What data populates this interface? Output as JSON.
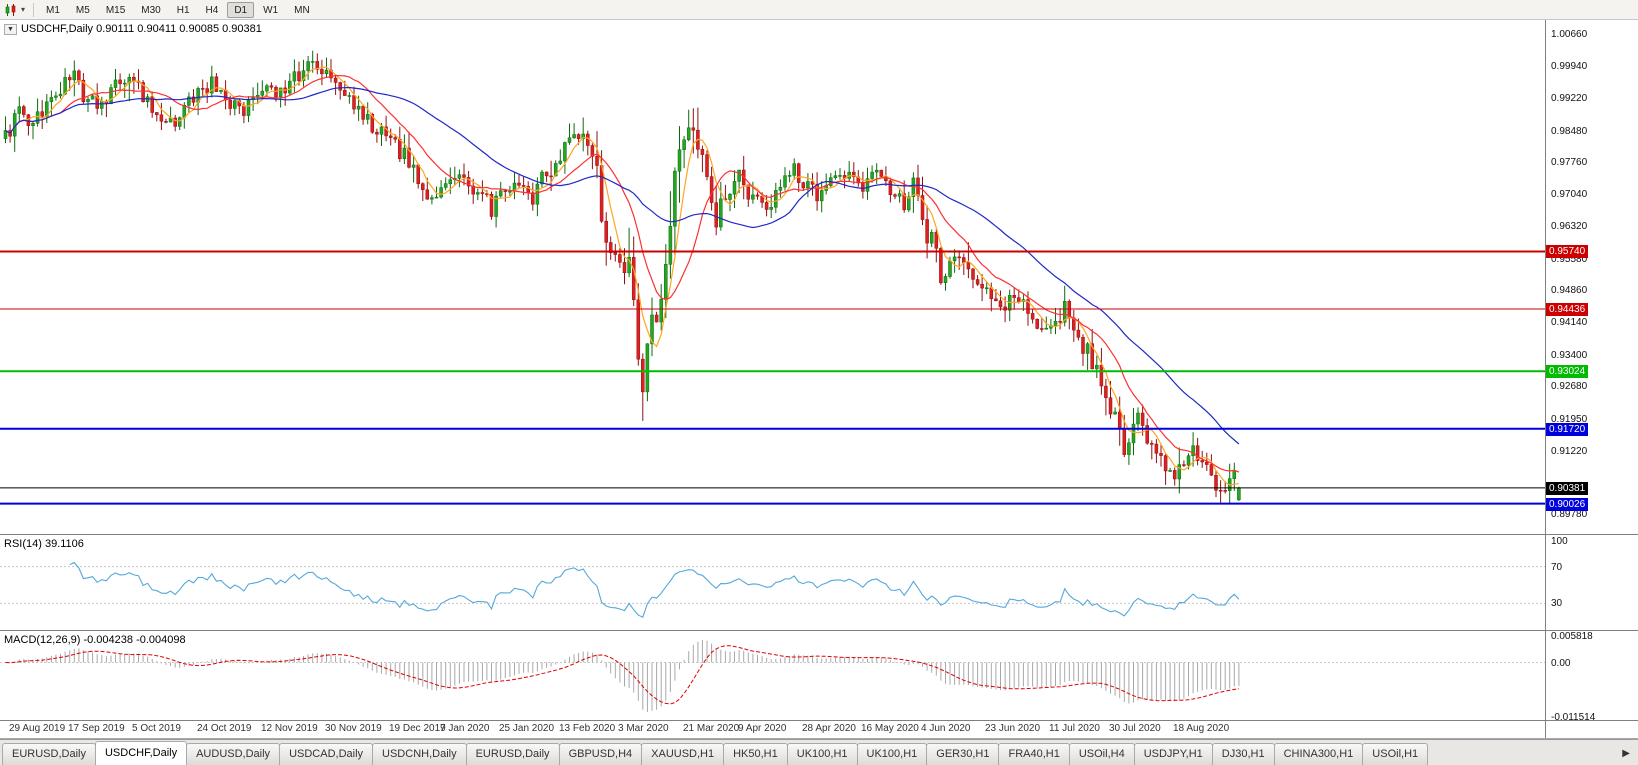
{
  "toolbar": {
    "timeframes": [
      "M1",
      "M5",
      "M15",
      "M30",
      "H1",
      "H4",
      "D1",
      "W1",
      "MN"
    ],
    "active": "D1",
    "dropdown_glyph": "▾"
  },
  "chart": {
    "title": "USDCHF,Daily 0.90111 0.90411 0.90085 0.90381",
    "symbol": "USDCHF",
    "period": "Daily",
    "collapse_glyph": "▼",
    "ohlc_display": {
      "open": "0.90111",
      "high": "0.90411",
      "low": "0.90085",
      "close": "0.90381"
    },
    "axis_labels": [
      "1.00660",
      "0.99940",
      "0.99220",
      "0.98480",
      "0.97760",
      "0.97040",
      "0.96320",
      "0.95580",
      "0.94860",
      "0.94140",
      "0.93400",
      "0.92680",
      "0.91950",
      "0.91220",
      "0.89780"
    ]
  },
  "chart_data": {
    "type": "candlestick",
    "symbol": "USDCHF",
    "timeframe": "Daily",
    "num_candles": 270,
    "price_axis": {
      "min": 0.8945,
      "max": 1.0085
    },
    "colors": {
      "up": "#23a623",
      "up_border": "#0c6b0c",
      "down": "#e02020",
      "down_border": "#8f0f0f"
    },
    "price_keypoints": [
      [
        0,
        0.983
      ],
      [
        3,
        0.9895
      ],
      [
        6,
        0.9868
      ],
      [
        10,
        0.9915
      ],
      [
        13,
        0.9958
      ],
      [
        15,
        0.9968
      ],
      [
        17,
        0.993
      ],
      [
        20,
        0.9902
      ],
      [
        23,
        0.9935
      ],
      [
        26,
        0.9968
      ],
      [
        27,
        0.9988
      ],
      [
        28,
        0.996
      ],
      [
        31,
        0.9915
      ],
      [
        34,
        0.988
      ],
      [
        36,
        0.9862
      ],
      [
        39,
        0.99
      ],
      [
        42,
        0.9928
      ],
      [
        45,
        0.9958
      ],
      [
        47,
        0.994
      ],
      [
        49,
        0.9912
      ],
      [
        52,
        0.99
      ],
      [
        56,
        0.9945
      ],
      [
        59,
        0.993
      ],
      [
        62,
        0.9958
      ],
      [
        65,
        0.9985
      ],
      [
        68,
        1.0005
      ],
      [
        70,
        0.9982
      ],
      [
        73,
        0.993
      ],
      [
        76,
        0.9898
      ],
      [
        80,
        0.9862
      ],
      [
        84,
        0.9828
      ],
      [
        88,
        0.9775
      ],
      [
        91,
        0.9718
      ],
      [
        93,
        0.9688
      ],
      [
        95,
        0.9705
      ],
      [
        98,
        0.9748
      ],
      [
        101,
        0.9722
      ],
      [
        104,
        0.97
      ],
      [
        106,
        0.9668
      ],
      [
        109,
        0.9705
      ],
      [
        112,
        0.9718
      ],
      [
        115,
        0.97
      ],
      [
        118,
        0.9752
      ],
      [
        121,
        0.98
      ],
      [
        124,
        0.984
      ],
      [
        126,
        0.982
      ],
      [
        128,
        0.9775
      ],
      [
        130,
        0.968
      ],
      [
        132,
        0.9572
      ],
      [
        134,
        0.9575
      ],
      [
        136,
        0.952
      ],
      [
        138,
        0.9352
      ],
      [
        139,
        0.931
      ],
      [
        140,
        0.9385
      ],
      [
        142,
        0.9448
      ],
      [
        144,
        0.9525
      ],
      [
        146,
        0.97
      ],
      [
        148,
        0.9855
      ],
      [
        149,
        0.988
      ],
      [
        151,
        0.98
      ],
      [
        153,
        0.9718
      ],
      [
        155,
        0.9655
      ],
      [
        157,
        0.9698
      ],
      [
        160,
        0.9745
      ],
      [
        163,
        0.9692
      ],
      [
        166,
        0.9652
      ],
      [
        169,
        0.971
      ],
      [
        172,
        0.9758
      ],
      [
        174,
        0.974
      ],
      [
        177,
        0.9695
      ],
      [
        180,
        0.9725
      ],
      [
        183,
        0.9755
      ],
      [
        186,
        0.9712
      ],
      [
        190,
        0.9748
      ],
      [
        193,
        0.971
      ],
      [
        196,
        0.9685
      ],
      [
        198,
        0.9715
      ],
      [
        200,
        0.966
      ],
      [
        202,
        0.9588
      ],
      [
        204,
        0.9512
      ],
      [
        206,
        0.9538
      ],
      [
        209,
        0.9572
      ],
      [
        211,
        0.951
      ],
      [
        214,
        0.9472
      ],
      [
        217,
        0.9438
      ],
      [
        220,
        0.9475
      ],
      [
        223,
        0.9442
      ],
      [
        226,
        0.9398
      ],
      [
        228,
        0.9412
      ],
      [
        231,
        0.9445
      ],
      [
        234,
        0.938
      ],
      [
        237,
        0.9322
      ],
      [
        240,
        0.925
      ],
      [
        242,
        0.9182
      ],
      [
        244,
        0.9128
      ],
      [
        246,
        0.9158
      ],
      [
        247,
        0.9185
      ],
      [
        249,
        0.9138
      ],
      [
        251,
        0.9105
      ],
      [
        253,
        0.9078
      ],
      [
        255,
        0.9045
      ],
      [
        257,
        0.9088
      ],
      [
        259,
        0.9125
      ],
      [
        261,
        0.9098
      ],
      [
        263,
        0.9062
      ],
      [
        265,
        0.9032
      ],
      [
        267,
        0.9072
      ],
      [
        269,
        0.90381
      ]
    ],
    "forced_extremes": [
      {
        "idx": 68,
        "high": 1.0023
      },
      {
        "idx": 139,
        "low": 0.919
      }
    ],
    "last_candle": {
      "o": 0.90111,
      "h": 0.90411,
      "l": 0.90085,
      "c": 0.90381
    },
    "moving_averages": [
      {
        "period": 5,
        "color": "#ffa520"
      },
      {
        "period": 13,
        "color": "#ff3030"
      },
      {
        "period": 34,
        "color": "#1f28c8"
      }
    ],
    "horizontal_lines": [
      {
        "value": 0.9574,
        "label": "0.95740",
        "color": "#cc0000",
        "width": 2
      },
      {
        "value": 0.94436,
        "label": "0.94436",
        "color": "#cc0000",
        "width": 1
      },
      {
        "value": 0.93024,
        "label": "0.93024",
        "color": "#00bb00",
        "width": 2
      },
      {
        "value": 0.9172,
        "label": "0.91720",
        "color": "#0000dd",
        "width": 2
      },
      {
        "value": 0.90026,
        "label": "0.90026",
        "color": "#0000dd",
        "width": 2
      }
    ],
    "current_price": {
      "value": 0.90381,
      "label": "0.90381",
      "color": "#000000"
    },
    "date_labels": [
      {
        "idx": 1,
        "label": "29 Aug 2019"
      },
      {
        "idx": 14,
        "label": "17 Sep 2019"
      },
      {
        "idx": 28,
        "label": "5 Oct 2019"
      },
      {
        "idx": 42,
        "label": "24 Oct 2019"
      },
      {
        "idx": 56,
        "label": "12 Nov 2019"
      },
      {
        "idx": 70,
        "label": "30 Nov 2019"
      },
      {
        "idx": 84,
        "label": "19 Dec 2019"
      },
      {
        "idx": 95,
        "label": "7 Jan 2020"
      },
      {
        "idx": 108,
        "label": "25 Jan 2020"
      },
      {
        "idx": 121,
        "label": "13 Feb 2020"
      },
      {
        "idx": 134,
        "label": "3 Mar 2020"
      },
      {
        "idx": 148,
        "label": "21 Mar 2020"
      },
      {
        "idx": 160,
        "label": "9 Apr 2020"
      },
      {
        "idx": 174,
        "label": "28 Apr 2020"
      },
      {
        "idx": 187,
        "label": "16 May 2020"
      },
      {
        "idx": 200,
        "label": "4 Jun 2020"
      },
      {
        "idx": 214,
        "label": "23 Jun 2020"
      },
      {
        "idx": 228,
        "label": "11 Jul 2020"
      },
      {
        "idx": 241,
        "label": "30 Jul 2020"
      },
      {
        "idx": 255,
        "label": "18 Aug 2020"
      }
    ]
  },
  "rsi": {
    "label": "RSI(14) 39.1106",
    "name": "RSI(14)",
    "value": "39.1106",
    "levels": [
      70,
      30
    ],
    "axis_labels": [
      "100",
      "70",
      "30"
    ],
    "color": "#53a8dc"
  },
  "macd": {
    "label": "MACD(12,26,9) -0.004238 -0.004098",
    "name": "MACD(12,26,9)",
    "values": [
      "-0.004238",
      "-0.004098"
    ],
    "axis_labels": [
      "0.005818",
      "0.00",
      "-0.011514"
    ],
    "range": {
      "max": 0.005818,
      "min": -0.011514
    }
  },
  "tabs": {
    "items": [
      "EURUSD,Daily",
      "USDCHF,Daily",
      "AUDUSD,Daily",
      "USDCAD,Daily",
      "USDCNH,Daily",
      "EURUSD,Daily",
      "GBPUSD,H4",
      "XAUUSD,H1",
      "HK50,H1",
      "UK100,H1",
      "UK100,H1",
      "GER30,H1",
      "FRA40,H1",
      "USOil,H4",
      "USDJPY,H1",
      "DJ30,H1",
      "CHINA300,H1",
      "USOil,H1"
    ],
    "active_index": 1,
    "scroll_right_glyph": "▶"
  }
}
